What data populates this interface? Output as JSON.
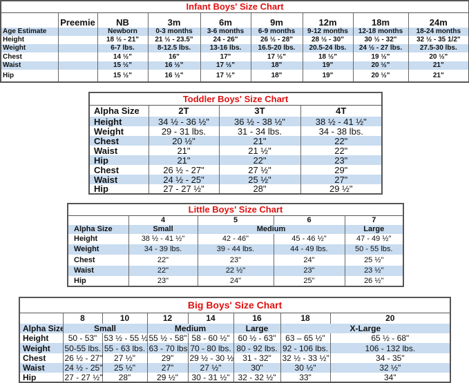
{
  "infant": {
    "title": "Infant Boys' Size Chart",
    "rows": [
      [
        "",
        "Preemie",
        "NB",
        "3m",
        "6m",
        "9m",
        "12m",
        "18m",
        "24m"
      ],
      [
        "Age Estimate",
        "",
        "Newborn",
        "0-3 months",
        "3-6 months",
        "6-9 months",
        "9-12 months",
        "12-18 months",
        "18-24 months"
      ],
      [
        "Height",
        "",
        "18 ½ - 21\"",
        "21 ½ - 23.5\"",
        "24 - 26\"",
        "26 ½ - 28\"",
        "28 ½ - 30\"",
        "30 ½ - 32\"",
        "32 ½ - 35 1/2\""
      ],
      [
        "Weight",
        "",
        "6-7 lbs.",
        "8-12.5 lbs.",
        "13-16 lbs.",
        "16.5-20 lbs.",
        "20.5-24 lbs.",
        "24 ½ - 27 lbs.",
        "27.5-30 lbs."
      ],
      [
        "Chest",
        "",
        "14 ½\"",
        "16\"",
        "17\"",
        "17 ½\"",
        "18 ½\"",
        "19 ½\"",
        "20 ½\""
      ],
      [
        "Waist",
        "",
        "15 ½\"",
        "16 ½\"",
        "17 ½\"",
        "18\"",
        "19\"",
        "20 ½\"",
        "21\""
      ],
      [
        "Hip",
        "",
        "15 ½\"",
        "16 ½\"",
        "17 ½\"",
        "18\"",
        "19\"",
        "20 ½\"",
        "21\""
      ]
    ]
  },
  "toddler": {
    "title": "Toddler Boys' Size Chart",
    "rows": [
      [
        "Alpha Size",
        "2T",
        "3T",
        "4T"
      ],
      [
        "Height",
        "34 ½ - 36 ½\"",
        "36 ½ - 38 ½\"",
        "38 ½ - 41 ½\""
      ],
      [
        "Weight",
        "29 - 31 lbs.",
        "31 - 34 lbs.",
        "34 - 38 lbs."
      ],
      [
        "Chest",
        "20 ½\"",
        "21\"",
        "22\""
      ],
      [
        "Waist",
        "21\"",
        "21 ½\"",
        "22\""
      ],
      [
        "Hip",
        "21\"",
        "22\"",
        "23\""
      ],
      [
        "Chest",
        "26 ½ - 27\"",
        "27 ½\"",
        "29\""
      ],
      [
        "Waist",
        "24 ½ - 25\"",
        "25 ½\"",
        "27\""
      ],
      [
        "Hip",
        "27 - 27 ½\"",
        "28\"",
        "29 ½\""
      ]
    ]
  },
  "little": {
    "title": "Little Boys' Size Chart",
    "rows": [
      [
        "",
        "4",
        "5",
        "6",
        "7"
      ],
      [
        "Alpha Size",
        "Small",
        {
          "text": "Medium",
          "span": 2
        },
        "Large"
      ],
      [
        "Height",
        "38 ½ - 41 ½\"",
        "42 - 46\"",
        "45 - 46 ½\"",
        "47 - 49 ½\""
      ],
      [
        "Weight",
        "34 - 39 lbs.",
        "39 - 44 lbs.",
        "44 - 49 lbs.",
        "50 - 55 lbs."
      ],
      [
        "Chest",
        "22\"",
        "23\"",
        "24\"",
        "25 ½\""
      ],
      [
        "Waist",
        "22\"",
        "22 ½\"",
        "23\"",
        "23 ½\""
      ],
      [
        "Hip",
        "23\"",
        "24\"",
        "25\"",
        "26 ½\""
      ]
    ]
  },
  "big": {
    "title": "Big Boys' Size Chart",
    "rows": [
      [
        "",
        "8",
        "10",
        "12",
        "14",
        "16",
        "18",
        "20"
      ],
      [
        "Alpha Size",
        {
          "text": "Small",
          "span": 2
        },
        {
          "text": "Medium",
          "span": 2
        },
        "Large",
        {
          "text": "X-Large",
          "span": 2
        }
      ],
      [
        "Height",
        "50 - 53\"",
        "53 ½ - 55 ½\"",
        "55 ½ - 58\"",
        "58 - 60 ½\"",
        "60 ½ - 63\"",
        "63 – 65 ½\"",
        "65 ½ - 68\""
      ],
      [
        "Weight",
        "50-55 lbs.",
        "55 - 63 lbs.",
        "63 - 70 lbs.",
        "70 - 80 lbs.",
        "80 - 92 lbs.",
        "92 - 106 lbs.",
        "106 - 132 lbs."
      ],
      [
        "Chest",
        "26 ½ - 27\"",
        "27 ½\"",
        "29\"",
        "29 ½ - 30 ½\"",
        "31 - 32\"",
        "32 ½ - 33 ½\"",
        "34 - 35\""
      ],
      [
        "Waist",
        "24 ½ - 25\"",
        "25 ½\"",
        "27\"",
        "27 ½\"",
        "30\"",
        "30 ½\"",
        "32 ½\""
      ],
      [
        "Hip",
        "27 - 27 ½\"",
        "28\"",
        "29 ½\"",
        "30 - 31 ½\"",
        "32 - 32 ½\"",
        "33\"",
        "34\""
      ]
    ]
  }
}
